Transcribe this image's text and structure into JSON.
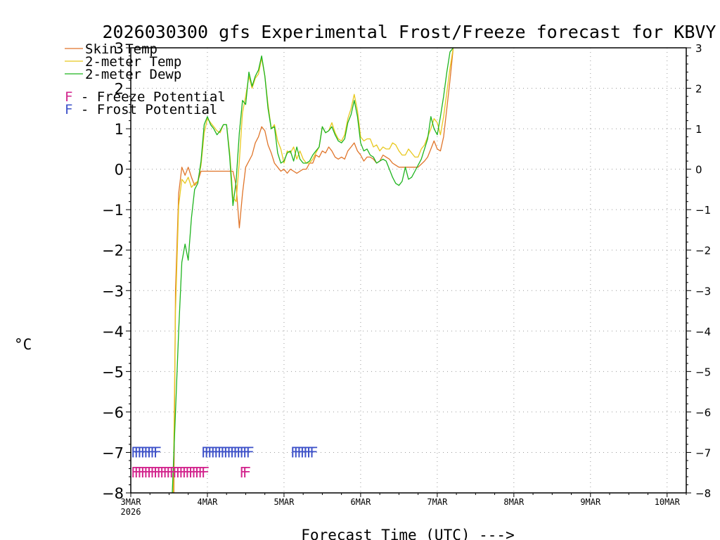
{
  "chart_data": {
    "type": "line",
    "title": "2026030300 gfs Experimental Frost/Freeze forecast for KBVY",
    "xlabel": "Forecast Time (UTC) --->",
    "ylabel": "°C",
    "ylim": [
      -8,
      3
    ],
    "xlim": [
      0,
      174
    ],
    "x_unit": "forecast hours from 2026-03-03 00Z",
    "yticks": [
      "−8",
      "−7",
      "−6",
      "−5",
      "−4",
      "−3",
      "−2",
      "−1",
      "0",
      "1",
      "2",
      "3"
    ],
    "xticks": [
      {
        "label": "3MAR",
        "sub": "2026",
        "hour": 0
      },
      {
        "label": "4MAR",
        "hour": 24
      },
      {
        "label": "5MAR",
        "hour": 48
      },
      {
        "label": "6MAR",
        "hour": 72
      },
      {
        "label": "7MAR",
        "hour": 96
      },
      {
        "label": "8MAR",
        "hour": 120
      },
      {
        "label": "9MAR",
        "hour": 144
      },
      {
        "label": "10MAR",
        "hour": 168
      }
    ],
    "grid": true,
    "legend": [
      {
        "label": "Skin Temp",
        "color": "#e0752a"
      },
      {
        "label": "2-meter Temp",
        "color": "#e8c81e"
      },
      {
        "label": "2-meter Dewp",
        "color": "#1eb41e"
      }
    ],
    "flag_legend": [
      {
        "prefix": "F",
        "text": " - Freeze Potential",
        "color": "#d2238c"
      },
      {
        "prefix": "F",
        "text": " - Frost Potential",
        "color": "#3c50c8"
      }
    ],
    "flag_char": "F",
    "series": [
      {
        "name": "Skin Temp",
        "color": "#e0752a",
        "points": [
          [
            13.5,
            -8
          ],
          [
            14,
            -3.0
          ],
          [
            15,
            -0.6
          ],
          [
            16,
            0.05
          ],
          [
            17,
            -0.15
          ],
          [
            18,
            0.05
          ],
          [
            19,
            -0.2
          ],
          [
            20,
            -0.4
          ],
          [
            21,
            -0.3
          ],
          [
            22,
            -0.05
          ],
          [
            24,
            -0.05
          ],
          [
            26,
            -0.05
          ],
          [
            28,
            -0.05
          ],
          [
            30,
            -0.05
          ],
          [
            32,
            -0.05
          ],
          [
            33,
            -0.4
          ],
          [
            34,
            -1.45
          ],
          [
            35,
            -0.6
          ],
          [
            36,
            0.05
          ],
          [
            38,
            0.35
          ],
          [
            39,
            0.65
          ],
          [
            40,
            0.8
          ],
          [
            41,
            1.05
          ],
          [
            42,
            0.95
          ],
          [
            43,
            0.6
          ],
          [
            44,
            0.4
          ],
          [
            45,
            0.15
          ],
          [
            46,
            0.05
          ],
          [
            47,
            -0.05
          ],
          [
            48,
            0.0
          ],
          [
            49,
            -0.1
          ],
          [
            50,
            0.0
          ],
          [
            51,
            -0.05
          ],
          [
            52,
            -0.1
          ],
          [
            53,
            -0.05
          ],
          [
            54,
            0.0
          ],
          [
            55,
            0.0
          ],
          [
            56,
            0.15
          ],
          [
            57,
            0.15
          ],
          [
            58,
            0.35
          ],
          [
            59,
            0.3
          ],
          [
            60,
            0.45
          ],
          [
            61,
            0.4
          ],
          [
            62,
            0.55
          ],
          [
            63,
            0.45
          ],
          [
            64,
            0.3
          ],
          [
            65,
            0.25
          ],
          [
            66,
            0.3
          ],
          [
            67,
            0.25
          ],
          [
            68,
            0.45
          ],
          [
            69,
            0.55
          ],
          [
            70,
            0.65
          ],
          [
            71,
            0.45
          ],
          [
            72,
            0.35
          ],
          [
            73,
            0.2
          ],
          [
            74,
            0.3
          ],
          [
            75,
            0.3
          ],
          [
            76,
            0.25
          ],
          [
            77,
            0.15
          ],
          [
            78,
            0.2
          ],
          [
            79,
            0.35
          ],
          [
            80,
            0.3
          ],
          [
            81,
            0.25
          ],
          [
            82,
            0.15
          ],
          [
            83,
            0.1
          ],
          [
            84,
            0.05
          ],
          [
            85,
            0.05
          ],
          [
            86,
            0.05
          ],
          [
            88,
            0.05
          ],
          [
            90,
            0.05
          ],
          [
            92,
            0.2
          ],
          [
            93,
            0.3
          ],
          [
            94,
            0.5
          ],
          [
            95,
            0.7
          ],
          [
            96,
            0.5
          ],
          [
            97,
            0.45
          ],
          [
            98,
            0.8
          ],
          [
            99,
            1.5
          ],
          [
            100,
            2.2
          ],
          [
            101,
            3.0
          ]
        ]
      },
      {
        "name": "2-meter Temp",
        "color": "#e8c81e",
        "points": [
          [
            13.3,
            -8
          ],
          [
            14,
            -3.5
          ],
          [
            15,
            -0.9
          ],
          [
            16,
            -0.25
          ],
          [
            17,
            -0.35
          ],
          [
            18,
            -0.2
          ],
          [
            19,
            -0.45
          ],
          [
            20,
            -0.35
          ],
          [
            21,
            -0.3
          ],
          [
            22,
            0.1
          ],
          [
            23,
            0.9
          ],
          [
            24,
            1.25
          ],
          [
            25,
            1.15
          ],
          [
            26,
            1.05
          ],
          [
            27,
            0.95
          ],
          [
            28,
            0.9
          ],
          [
            29,
            1.1
          ],
          [
            30,
            1.1
          ],
          [
            31,
            0.4
          ],
          [
            32,
            -0.7
          ],
          [
            33,
            -0.8
          ],
          [
            34,
            0.2
          ],
          [
            35,
            1.4
          ],
          [
            36,
            1.8
          ],
          [
            37,
            2.3
          ],
          [
            38,
            2.0
          ],
          [
            39,
            2.25
          ],
          [
            40,
            2.35
          ],
          [
            41,
            2.75
          ],
          [
            42,
            2.3
          ],
          [
            43,
            1.6
          ],
          [
            44,
            1.0
          ],
          [
            45,
            1.1
          ],
          [
            46,
            0.7
          ],
          [
            47,
            0.5
          ],
          [
            48,
            0.15
          ],
          [
            49,
            0.45
          ],
          [
            50,
            0.4
          ],
          [
            51,
            0.55
          ],
          [
            52,
            0.25
          ],
          [
            53,
            0.45
          ],
          [
            54,
            0.25
          ],
          [
            55,
            0.15
          ],
          [
            56,
            0.15
          ],
          [
            57,
            0.25
          ],
          [
            58,
            0.4
          ],
          [
            59,
            0.55
          ],
          [
            60,
            1.05
          ],
          [
            61,
            0.9
          ],
          [
            62,
            0.95
          ],
          [
            63,
            1.15
          ],
          [
            64,
            0.9
          ],
          [
            65,
            0.75
          ],
          [
            66,
            0.7
          ],
          [
            67,
            0.85
          ],
          [
            68,
            1.25
          ],
          [
            69,
            1.5
          ],
          [
            70,
            1.85
          ],
          [
            71,
            1.45
          ],
          [
            72,
            0.8
          ],
          [
            73,
            0.7
          ],
          [
            74,
            0.75
          ],
          [
            75,
            0.75
          ],
          [
            76,
            0.55
          ],
          [
            77,
            0.6
          ],
          [
            78,
            0.45
          ],
          [
            79,
            0.55
          ],
          [
            80,
            0.5
          ],
          [
            81,
            0.5
          ],
          [
            82,
            0.65
          ],
          [
            83,
            0.6
          ],
          [
            84,
            0.45
          ],
          [
            85,
            0.35
          ],
          [
            86,
            0.35
          ],
          [
            87,
            0.5
          ],
          [
            88,
            0.4
          ],
          [
            89,
            0.3
          ],
          [
            90,
            0.3
          ],
          [
            91,
            0.5
          ],
          [
            92,
            0.6
          ],
          [
            93,
            0.8
          ],
          [
            94,
            1.0
          ],
          [
            95,
            1.25
          ],
          [
            96,
            1.15
          ],
          [
            97,
            0.85
          ],
          [
            98,
            1.3
          ],
          [
            99,
            1.9
          ],
          [
            100,
            2.5
          ],
          [
            101,
            3.0
          ]
        ]
      },
      {
        "name": "2-meter Dewp",
        "color": "#1eb41e",
        "points": [
          [
            13.0,
            -8
          ],
          [
            14,
            -6.0
          ],
          [
            15,
            -4.0
          ],
          [
            16,
            -2.3
          ],
          [
            17,
            -1.85
          ],
          [
            18,
            -2.25
          ],
          [
            19,
            -1.2
          ],
          [
            20,
            -0.5
          ],
          [
            21,
            -0.35
          ],
          [
            22,
            0.2
          ],
          [
            23,
            1.1
          ],
          [
            24,
            1.3
          ],
          [
            25,
            1.1
          ],
          [
            26,
            1.0
          ],
          [
            27,
            0.85
          ],
          [
            28,
            0.95
          ],
          [
            29,
            1.1
          ],
          [
            30,
            1.1
          ],
          [
            31,
            0.3
          ],
          [
            32,
            -0.9
          ],
          [
            33,
            -0.3
          ],
          [
            34,
            0.9
          ],
          [
            35,
            1.7
          ],
          [
            36,
            1.6
          ],
          [
            37,
            2.4
          ],
          [
            38,
            2.05
          ],
          [
            39,
            2.3
          ],
          [
            40,
            2.45
          ],
          [
            41,
            2.8
          ],
          [
            42,
            2.3
          ],
          [
            43,
            1.5
          ],
          [
            44,
            1.0
          ],
          [
            45,
            1.05
          ],
          [
            46,
            0.4
          ],
          [
            47,
            0.15
          ],
          [
            48,
            0.2
          ],
          [
            49,
            0.4
          ],
          [
            50,
            0.45
          ],
          [
            51,
            0.2
          ],
          [
            52,
            0.55
          ],
          [
            53,
            0.25
          ],
          [
            54,
            0.15
          ],
          [
            55,
            0.15
          ],
          [
            56,
            0.2
          ],
          [
            57,
            0.35
          ],
          [
            58,
            0.45
          ],
          [
            59,
            0.55
          ],
          [
            60,
            1.05
          ],
          [
            61,
            0.9
          ],
          [
            62,
            0.95
          ],
          [
            63,
            1.05
          ],
          [
            64,
            0.85
          ],
          [
            65,
            0.7
          ],
          [
            66,
            0.65
          ],
          [
            67,
            0.75
          ],
          [
            68,
            1.15
          ],
          [
            69,
            1.35
          ],
          [
            70,
            1.7
          ],
          [
            71,
            1.3
          ],
          [
            72,
            0.65
          ],
          [
            73,
            0.45
          ],
          [
            74,
            0.5
          ],
          [
            75,
            0.35
          ],
          [
            76,
            0.3
          ],
          [
            77,
            0.15
          ],
          [
            78,
            0.2
          ],
          [
            79,
            0.25
          ],
          [
            80,
            0.2
          ],
          [
            81,
            0.0
          ],
          [
            82,
            -0.2
          ],
          [
            83,
            -0.35
          ],
          [
            84,
            -0.4
          ],
          [
            85,
            -0.3
          ],
          [
            86,
            0.05
          ],
          [
            87,
            -0.25
          ],
          [
            88,
            -0.2
          ],
          [
            89,
            -0.05
          ],
          [
            90,
            0.1
          ],
          [
            91,
            0.25
          ],
          [
            92,
            0.5
          ],
          [
            93,
            0.75
          ],
          [
            94,
            1.3
          ],
          [
            95,
            1.0
          ],
          [
            96,
            0.85
          ],
          [
            97,
            1.3
          ],
          [
            98,
            1.8
          ],
          [
            99,
            2.4
          ],
          [
            100,
            2.9
          ],
          [
            101,
            3.0
          ]
        ]
      }
    ],
    "freeze_flags": {
      "color": "#d2238c",
      "y": -7.5,
      "hours": [
        0,
        1,
        2,
        3,
        4,
        5,
        6,
        7,
        8,
        9,
        10,
        11,
        12,
        13,
        14,
        15,
        16,
        17,
        18,
        19,
        20,
        21,
        22,
        34,
        35
      ]
    },
    "frost_flags": {
      "color": "#3c50c8",
      "y": -7.0,
      "hours": [
        0,
        1,
        2,
        3,
        4,
        5,
        6,
        7,
        22,
        23,
        24,
        25,
        26,
        27,
        28,
        29,
        30,
        31,
        32,
        33,
        34,
        35,
        36,
        50,
        51,
        52,
        53,
        54,
        55,
        56
      ]
    }
  }
}
